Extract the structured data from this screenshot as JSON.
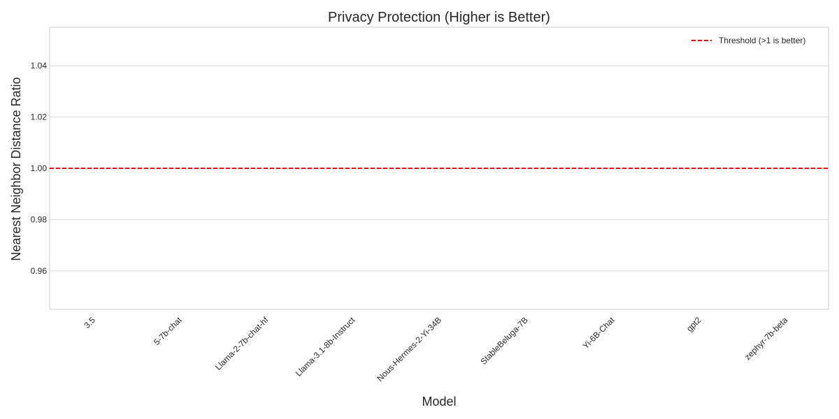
{
  "chart_data": {
    "type": "bar",
    "title": "Privacy Protection (Higher is Better)",
    "xlabel": "Model",
    "ylabel": "Nearest Neighbor Distance Ratio",
    "categories": [
      "3.5",
      "5-7b-chat",
      "Llama-2-7b-chat-hf",
      "Llama-3.1-8b-Instruct",
      "Nous-Hermes-2-Yi-34B",
      "StableBeluga-7B",
      "Yi-6B-Chat",
      "gpt2",
      "zephyr-7b-beta"
    ],
    "values": [
      null,
      null,
      null,
      null,
      null,
      null,
      null,
      null,
      null
    ],
    "ylim": [
      0.945,
      1.055
    ],
    "yticks": [
      0.96,
      0.98,
      1.0,
      1.02,
      1.04
    ],
    "ytick_labels": [
      "0.96",
      "0.98",
      "1.00",
      "1.02",
      "1.04"
    ],
    "grid": true,
    "threshold": {
      "value": 1.0,
      "label": "Threshold (>1 is better)",
      "color": "#ff0000"
    },
    "legend_position": "top-right"
  }
}
